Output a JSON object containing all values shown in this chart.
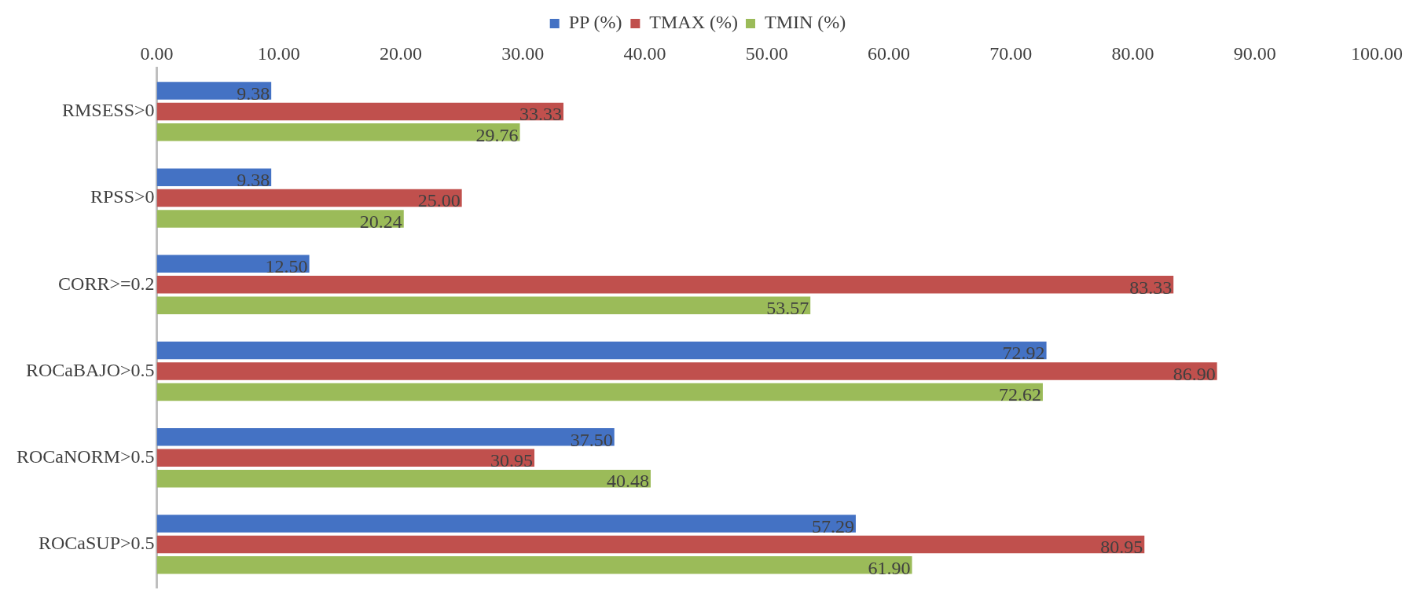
{
  "chart_data": {
    "type": "bar",
    "orientation": "horizontal",
    "categories": [
      "RMSESS>0",
      "RPSS>0",
      "CORR>=0.2",
      "ROCaBAJO>0.5",
      "ROCaNORM>0.5",
      "ROCaSUP>0.5"
    ],
    "series": [
      {
        "name": "PP (%)",
        "color": "#4472c4",
        "values": [
          9.38,
          9.38,
          12.5,
          72.92,
          37.5,
          57.29
        ],
        "value_labels": [
          "9.38",
          "9.38",
          "12.50",
          "72.92",
          "37.50",
          "57.29"
        ]
      },
      {
        "name": "TMAX (%)",
        "color": "#c0504d",
        "values": [
          33.33,
          25,
          83.33,
          86.9,
          30.95,
          80.95
        ],
        "value_labels": [
          "33.33",
          "25.00",
          "83.33",
          "86.90",
          "30.95",
          "80.95"
        ]
      },
      {
        "name": "TMIN (%)",
        "color": "#9bbb59",
        "values": [
          29.76,
          20.24,
          53.57,
          72.62,
          40.48,
          61.9
        ],
        "value_labels": [
          "29.76",
          "20.24",
          "53.57",
          "72.62",
          "40.48",
          "61.90"
        ]
      }
    ],
    "xlim": [
      0,
      100
    ],
    "xticks": [
      {
        "value": 0,
        "label": "0.00"
      },
      {
        "value": 10,
        "label": "10.00"
      },
      {
        "value": 20,
        "label": "20.00"
      },
      {
        "value": 30,
        "label": "30.00"
      },
      {
        "value": 40,
        "label": "40.00"
      },
      {
        "value": 50,
        "label": "50.00"
      },
      {
        "value": 60,
        "label": "60.00"
      },
      {
        "value": 70,
        "label": "70.00"
      },
      {
        "value": 80,
        "label": "80.00"
      },
      {
        "value": 90,
        "label": "90.00"
      },
      {
        "value": 100,
        "label": "100.00"
      }
    ],
    "grid": false,
    "legend": "top"
  }
}
